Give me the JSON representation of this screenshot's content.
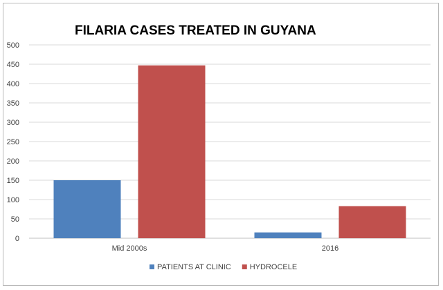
{
  "chart_data": {
    "type": "bar",
    "title": "FILARIA CASES TREATED IN GUYANA",
    "categories": [
      "Mid 2000s",
      "2016"
    ],
    "series": [
      {
        "name": "PATIENTS AT CLINIC",
        "color": "#4f81bd",
        "values": [
          150,
          15
        ]
      },
      {
        "name": "HYDROCELE",
        "color": "#c0504d",
        "values": [
          447,
          83
        ]
      }
    ],
    "ylim": [
      0,
      500
    ],
    "yticks": [
      0,
      50,
      100,
      150,
      200,
      250,
      300,
      350,
      400,
      450,
      500
    ],
    "grid": true,
    "legend_position": "bottom",
    "xlabel": "",
    "ylabel": ""
  },
  "colors": {
    "gridline": "#d9d9d9",
    "axis": "#bfbfbf"
  }
}
